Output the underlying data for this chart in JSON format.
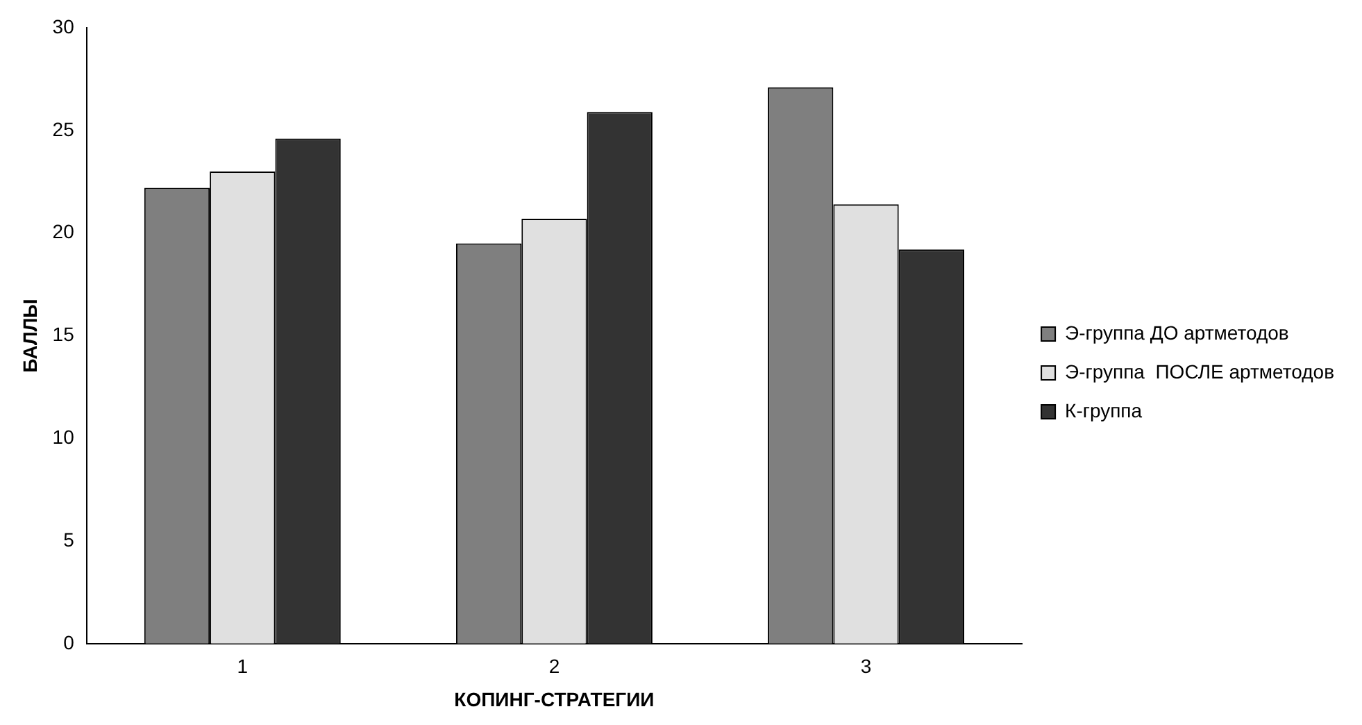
{
  "chart_data": {
    "type": "bar",
    "xlabel": "КОПИНГ-СТРАТЕГИИ",
    "ylabel": "БАЛЛЫ",
    "categories": [
      "1",
      "2",
      "3"
    ],
    "series": [
      {
        "name": "Э-группа ДО артметодов",
        "color": "#7f7f7f",
        "values": [
          22.2,
          19.5,
          27.1
        ]
      },
      {
        "name": "Э-группа  ПОСЛЕ артметодов",
        "color": "#e0e0e0",
        "values": [
          23.0,
          20.7,
          21.4
        ]
      },
      {
        "name": "К-группа",
        "color": "#333333",
        "values": [
          24.6,
          25.9,
          19.2
        ]
      }
    ],
    "ylim": [
      0,
      30
    ],
    "yticks": [
      0,
      5,
      10,
      15,
      20,
      25,
      30
    ],
    "grid": false,
    "legend": "right"
  }
}
